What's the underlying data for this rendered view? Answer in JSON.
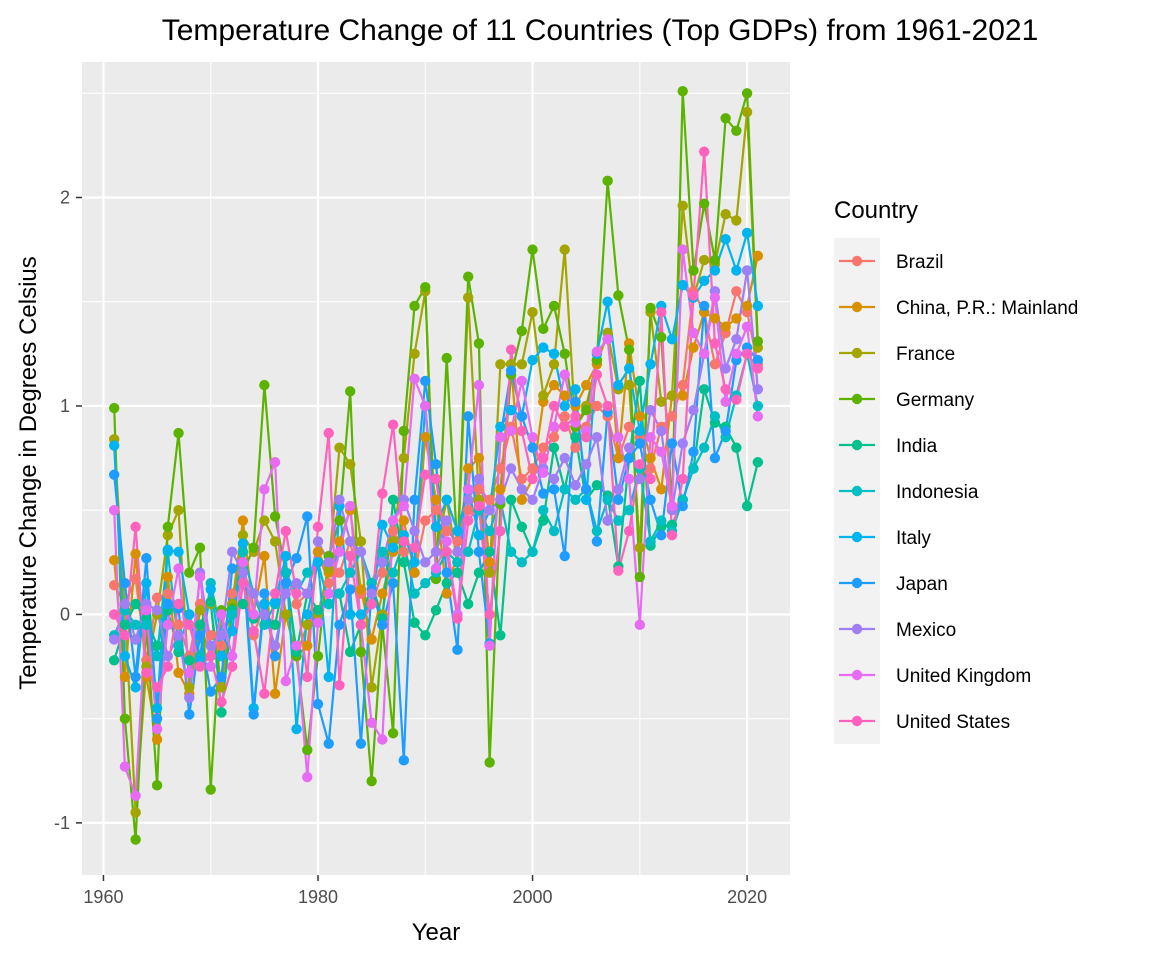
{
  "chart_data": {
    "type": "line",
    "title": "Temperature Change of 11 Countries (Top GDPs) from 1961-2021",
    "xlabel": "Year",
    "ylabel": "Temperature Change in Degrees Celsius",
    "xlim": [
      1958,
      2024
    ],
    "ylim": [
      -1.25,
      2.65
    ],
    "x_ticks": [
      1960,
      1980,
      2000,
      2020
    ],
    "x_tick_labels": [
      "1960",
      "1980",
      "2000",
      "2020"
    ],
    "y_ticks": [
      -1,
      0,
      1,
      2
    ],
    "y_tick_labels": [
      "-1",
      "0",
      "1",
      "2"
    ],
    "grid": true,
    "legend": {
      "title": "Country",
      "position": "right"
    },
    "markers": true,
    "x": [
      1961,
      1962,
      1963,
      1964,
      1965,
      1966,
      1967,
      1968,
      1969,
      1970,
      1971,
      1972,
      1973,
      1974,
      1975,
      1976,
      1977,
      1978,
      1979,
      1980,
      1981,
      1982,
      1983,
      1984,
      1985,
      1986,
      1987,
      1988,
      1989,
      1990,
      1991,
      1992,
      1993,
      1994,
      1995,
      1996,
      1997,
      1998,
      1999,
      2000,
      2001,
      2002,
      2003,
      2004,
      2005,
      2006,
      2007,
      2008,
      2009,
      2010,
      2011,
      2012,
      2013,
      2014,
      2015,
      2016,
      2017,
      2018,
      2019,
      2020,
      2021
    ],
    "series": [
      {
        "name": "Brazil",
        "color": "#F8766D",
        "values": [
          0.14,
          0.05,
          0.17,
          -0.22,
          0.08,
          0.1,
          -0.05,
          -0.2,
          0.05,
          -0.1,
          -0.15,
          0.1,
          0.25,
          -0.1,
          0.05,
          -0.2,
          0.2,
          0.05,
          0.1,
          0.3,
          0.15,
          0.2,
          0.35,
          0.1,
          0.05,
          0.2,
          0.4,
          0.3,
          0.2,
          0.45,
          0.5,
          0.4,
          0.35,
          0.5,
          0.6,
          0.55,
          0.7,
          0.9,
          0.65,
          0.7,
          0.8,
          0.85,
          0.95,
          0.8,
          0.9,
          1.0,
          0.95,
          0.75,
          0.9,
          0.85,
          0.7,
          0.9,
          0.95,
          1.1,
          1.55,
          1.45,
          1.2,
          1.35,
          1.55,
          1.45,
          1.2
        ]
      },
      {
        "name": "China, P.R.: Mainland",
        "color": "#D89000",
        "values": [
          0.26,
          -0.3,
          0.29,
          -0.3,
          -0.6,
          0.18,
          -0.28,
          -0.38,
          -0.05,
          -0.2,
          0.0,
          0.05,
          0.45,
          0.0,
          0.28,
          -0.38,
          0.0,
          -0.2,
          -0.15,
          0.3,
          0.2,
          0.35,
          0.5,
          0.12,
          -0.12,
          0.1,
          0.3,
          0.45,
          0.2,
          0.85,
          0.55,
          0.1,
          0.3,
          0.7,
          0.75,
          0.25,
          0.6,
          1.2,
          0.55,
          0.65,
          1.02,
          1.1,
          1.05,
          1.0,
          1.1,
          1.2,
          1.35,
          0.75,
          1.3,
          0.95,
          0.75,
          0.6,
          1.05,
          1.05,
          1.28,
          1.45,
          1.42,
          1.38,
          1.42,
          1.48,
          1.72
        ]
      },
      {
        "name": "France",
        "color": "#A3A500",
        "values": [
          0.84,
          0.02,
          -0.95,
          -0.25,
          0.0,
          0.38,
          0.5,
          -0.35,
          0.02,
          0.05,
          -0.35,
          0.05,
          0.38,
          0.3,
          0.45,
          0.35,
          0.0,
          -0.2,
          -0.05,
          0.0,
          0.22,
          0.8,
          0.72,
          0.35,
          -0.35,
          0.0,
          0.35,
          0.75,
          1.25,
          1.55,
          0.3,
          0.55,
          0.25,
          1.52,
          0.55,
          0.2,
          1.2,
          1.2,
          1.2,
          1.45,
          1.05,
          1.2,
          1.75,
          0.9,
          1.0,
          1.22,
          1.35,
          1.08,
          1.1,
          0.32,
          1.45,
          1.02,
          1.05,
          1.96,
          1.52,
          1.7,
          1.68,
          1.92,
          1.89,
          2.41,
          1.28
        ]
      },
      {
        "name": "Germany",
        "color": "#5BB300",
        "values": [
          0.99,
          -0.5,
          -1.08,
          -0.05,
          -0.82,
          0.42,
          0.87,
          0.2,
          0.32,
          -0.84,
          0.02,
          0.03,
          0.2,
          0.32,
          1.1,
          0.47,
          0.2,
          -0.2,
          -0.65,
          -0.2,
          0.28,
          0.45,
          1.07,
          -0.18,
          -0.8,
          -0.05,
          -0.57,
          0.88,
          1.48,
          1.57,
          0.17,
          1.23,
          0.3,
          1.62,
          1.3,
          -0.71,
          0.53,
          1.15,
          1.36,
          1.75,
          1.37,
          1.48,
          1.25,
          0.9,
          0.98,
          1.22,
          2.08,
          1.53,
          1.27,
          0.18,
          1.47,
          1.33,
          0.52,
          2.51,
          1.65,
          1.97,
          1.7,
          2.38,
          2.32,
          2.5,
          1.31
        ]
      },
      {
        "name": "India",
        "color": "#00C08B",
        "values": [
          -0.22,
          -0.05,
          0.05,
          -0.02,
          -0.15,
          0.02,
          -0.18,
          -0.22,
          -0.05,
          0.06,
          -0.47,
          0.02,
          0.05,
          -0.02,
          0.0,
          -0.05,
          0.2,
          -0.18,
          0.1,
          0.02,
          0.05,
          0.1,
          -0.18,
          -0.05,
          0.15,
          -0.02,
          0.55,
          0.25,
          -0.04,
          -0.1,
          0.02,
          0.15,
          0.2,
          0.05,
          0.2,
          0.3,
          -0.1,
          0.55,
          0.42,
          0.3,
          0.45,
          0.8,
          0.6,
          0.85,
          0.55,
          0.62,
          0.57,
          0.23,
          0.75,
          1.12,
          0.33,
          0.42,
          0.43,
          0.55,
          0.7,
          1.08,
          0.92,
          0.9,
          0.8,
          0.52,
          0.73
        ]
      },
      {
        "name": "Indonesia",
        "color": "#00BFC4",
        "values": [
          -0.1,
          0.02,
          -0.05,
          -0.05,
          -0.2,
          0.3,
          -0.15,
          0.0,
          -0.2,
          0.15,
          -0.1,
          0.0,
          0.3,
          0.1,
          -0.05,
          0.05,
          0.2,
          0.1,
          0.2,
          0.25,
          0.05,
          0.1,
          0.2,
          0.3,
          0.15,
          0.3,
          0.2,
          0.35,
          0.1,
          0.15,
          0.2,
          0.3,
          0.25,
          0.3,
          0.5,
          0.4,
          0.55,
          0.3,
          0.25,
          0.3,
          0.5,
          0.4,
          0.6,
          0.55,
          0.6,
          0.4,
          0.55,
          0.45,
          0.5,
          0.7,
          0.35,
          0.45,
          0.4,
          0.55,
          0.7,
          0.8,
          0.95,
          0.85,
          1.05,
          1.25,
          1.0
        ]
      },
      {
        "name": "Italy",
        "color": "#00B4EF",
        "values": [
          0.81,
          -0.2,
          -0.35,
          0.15,
          -0.45,
          0.31,
          0.3,
          0.0,
          -0.22,
          0.12,
          -0.2,
          -0.08,
          0.34,
          -0.45,
          0.05,
          0.06,
          0.28,
          -0.55,
          0.0,
          0.25,
          -0.3,
          0.52,
          0.0,
          0.0,
          0.05,
          0.43,
          0.32,
          0.38,
          0.25,
          1.0,
          0.42,
          0.55,
          0.4,
          0.6,
          0.38,
          0.5,
          0.9,
          0.98,
          0.95,
          1.22,
          1.28,
          1.25,
          1.0,
          1.08,
          0.55,
          1.25,
          1.5,
          1.1,
          1.18,
          0.88,
          1.2,
          1.48,
          1.32,
          1.58,
          1.52,
          1.6,
          1.65,
          1.8,
          1.65,
          1.83,
          1.48
        ]
      },
      {
        "name": "Japan",
        "color": "#1D9DFF",
        "values": [
          0.67,
          0.15,
          -0.3,
          0.27,
          -0.5,
          0.05,
          0.03,
          -0.48,
          -0.1,
          -0.37,
          -0.3,
          0.22,
          0.25,
          -0.48,
          0.1,
          -0.2,
          0.15,
          0.27,
          0.47,
          -0.43,
          -0.62,
          -0.05,
          0.12,
          -0.62,
          0.12,
          -0.05,
          0.15,
          -0.7,
          0.55,
          1.12,
          0.72,
          0.2,
          -0.17,
          0.95,
          0.3,
          -0.14,
          0.85,
          1.17,
          0.95,
          0.8,
          0.58,
          0.6,
          0.28,
          1.02,
          0.6,
          0.35,
          0.97,
          0.55,
          0.75,
          0.82,
          0.55,
          0.38,
          0.82,
          0.52,
          0.78,
          1.48,
          0.75,
          0.88,
          1.22,
          1.28,
          1.22
        ]
      },
      {
        "name": "Mexico",
        "color": "#9F7EF6",
        "values": [
          -0.12,
          0.05,
          -0.12,
          0.05,
          0.02,
          -0.2,
          -0.1,
          -0.4,
          0.2,
          -0.15,
          -0.1,
          0.3,
          0.2,
          0.1,
          0.0,
          -0.15,
          0.1,
          0.15,
          0.1,
          0.35,
          0.25,
          0.55,
          0.35,
          0.3,
          0.1,
          0.25,
          0.45,
          0.55,
          0.4,
          0.25,
          0.3,
          0.45,
          0.3,
          0.55,
          0.65,
          0.5,
          0.55,
          0.7,
          0.6,
          0.55,
          0.7,
          0.65,
          0.75,
          0.62,
          0.72,
          0.85,
          0.45,
          0.6,
          0.8,
          0.65,
          0.98,
          0.88,
          0.5,
          0.82,
          0.98,
          1.25,
          1.55,
          1.18,
          1.32,
          1.65,
          1.08
        ]
      },
      {
        "name": "United Kingdom",
        "color": "#E76BF3",
        "values": [
          0.5,
          -0.73,
          -0.87,
          0.02,
          -0.55,
          -0.05,
          0.22,
          -0.28,
          0.18,
          -0.25,
          0.0,
          -0.2,
          0.25,
          0.0,
          0.6,
          0.73,
          -0.32,
          -0.15,
          -0.78,
          -0.04,
          0.1,
          0.3,
          0.52,
          -0.05,
          -0.52,
          -0.6,
          0.45,
          0.52,
          1.13,
          1.0,
          0.22,
          0.35,
          0.0,
          0.6,
          1.1,
          -0.15,
          0.85,
          0.88,
          1.12,
          0.85,
          0.68,
          0.9,
          1.15,
          0.92,
          0.88,
          1.26,
          1.32,
          0.85,
          0.65,
          -0.05,
          0.85,
          0.78,
          0.52,
          1.75,
          1.35,
          1.25,
          1.52,
          1.02,
          1.25,
          1.38,
          0.95
        ]
      },
      {
        "name": "United States",
        "color": "#FF62BC",
        "values": [
          0.0,
          -0.1,
          0.42,
          -0.28,
          -0.35,
          -0.25,
          0.05,
          -0.05,
          -0.25,
          -0.2,
          -0.42,
          -0.25,
          0.15,
          -0.08,
          -0.38,
          0.1,
          0.4,
          0.1,
          -0.3,
          0.42,
          0.87,
          -0.34,
          0.28,
          -0.05,
          0.05,
          0.58,
          0.91,
          0.35,
          0.32,
          0.67,
          0.65,
          0.3,
          -0.02,
          0.45,
          0.52,
          0.0,
          0.4,
          1.27,
          0.88,
          0.65,
          0.75,
          1.0,
          0.9,
          0.95,
          0.85,
          1.15,
          1.0,
          0.21,
          0.4,
          0.72,
          0.65,
          1.45,
          0.38,
          0.65,
          1.53,
          2.22,
          1.3,
          1.08,
          1.03,
          1.25,
          1.18
        ]
      }
    ]
  }
}
